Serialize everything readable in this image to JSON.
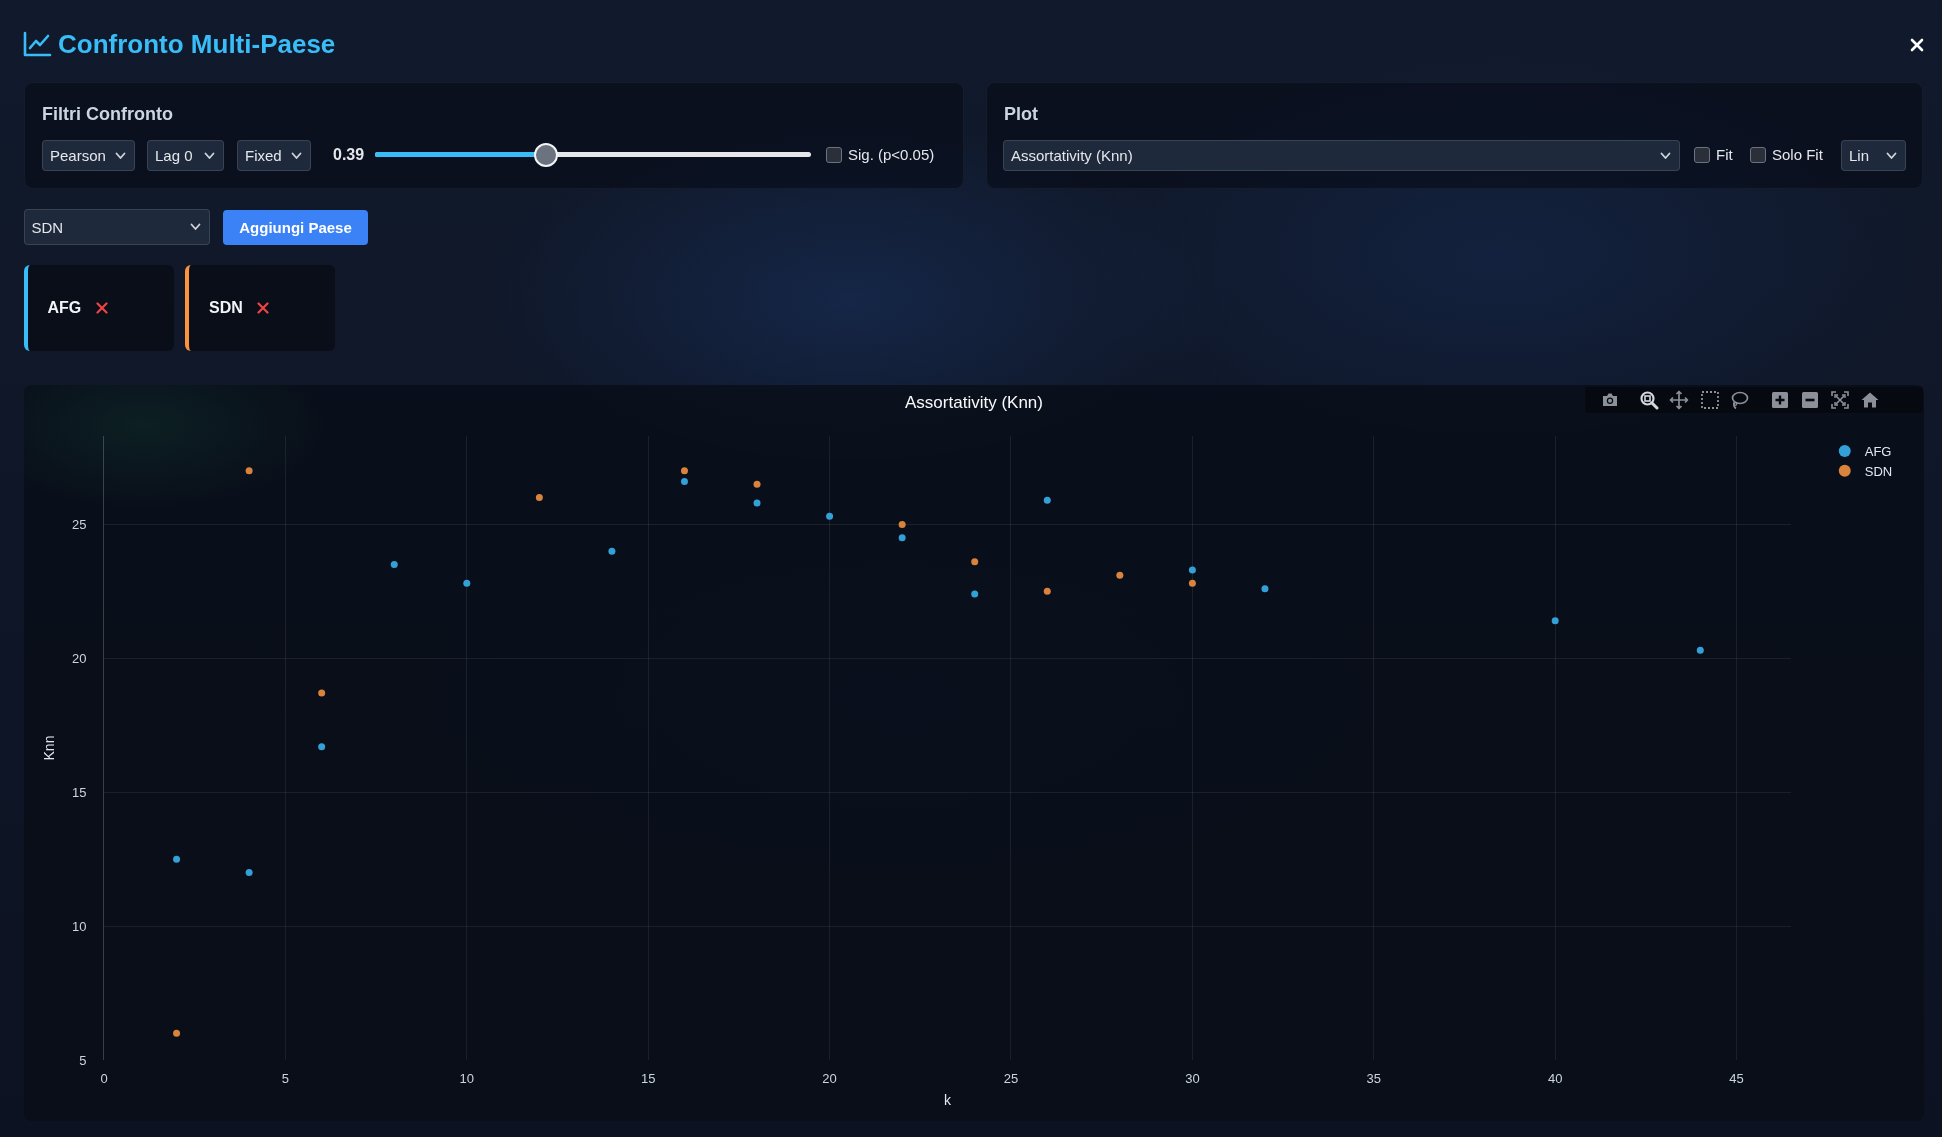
{
  "chart_data": [
    {
      "type": "other",
      "title": "Confronto Multi-Paese",
      "annotations": [
        "Filtri Confronto",
        "Pearson",
        "Lag 0",
        "Fixed",
        "0.39",
        "Sig. (p<0.05)",
        "Plot",
        "Assortativity (Knn)",
        "Fit",
        "Solo Fit",
        "Lin",
        "SDN",
        "Aggiungi Paese",
        "AFG",
        "SDN"
      ]
    },
    {
      "type": "scatter",
      "title": "Assortativity (Knn)",
      "xlabel": "k",
      "ylabel": "Knn",
      "series": [
        {
          "name": "AFG",
          "color": "#34a0d8",
          "x": [
            2,
            4,
            6,
            8,
            10,
            14,
            16,
            18,
            20,
            22,
            24,
            26,
            30,
            32,
            40,
            44
          ],
          "values": [
            12.5,
            12.0,
            16.7,
            23.5,
            22.8,
            24.0,
            26.6,
            25.8,
            25.3,
            24.5,
            22.4,
            25.9,
            23.3,
            22.6,
            21.4,
            20.3
          ]
        },
        {
          "name": "SDN",
          "color": "#d9833d",
          "x": [
            2,
            4,
            6,
            12,
            16,
            18,
            22,
            24,
            26,
            28,
            30
          ],
          "values": [
            6.0,
            27.0,
            18.7,
            26.0,
            27.0,
            26.5,
            25.0,
            23.6,
            22.5,
            23.1,
            22.8
          ]
        }
      ],
      "xlim": [
        0,
        46.5
      ],
      "ylim": [
        5,
        28.3
      ],
      "xticks": [
        0,
        5,
        10,
        15,
        20,
        25,
        30,
        35,
        40,
        45
      ],
      "yticks": [
        5,
        10,
        15,
        20,
        25
      ],
      "grid": true,
      "legend": "top right",
      "marker": "circle"
    }
  ]
}
